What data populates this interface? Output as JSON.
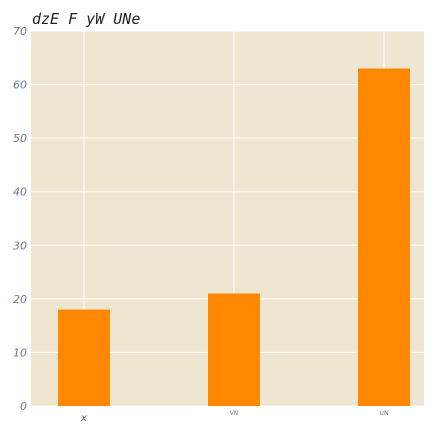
{
  "chart_data": {
    "type": "bar",
    "title": "dzE F  yW UNe",
    "categories": [
      "x",
      "VN",
      "UN"
    ],
    "values": [
      18,
      21,
      63
    ],
    "ylim": [
      0,
      70
    ],
    "yticks": [
      0,
      10,
      20,
      30,
      40,
      50,
      60,
      70
    ],
    "grid": true,
    "bar_color": "#ff8800",
    "plot_background": "#efe6d2",
    "grid_color": "#ffffff"
  }
}
